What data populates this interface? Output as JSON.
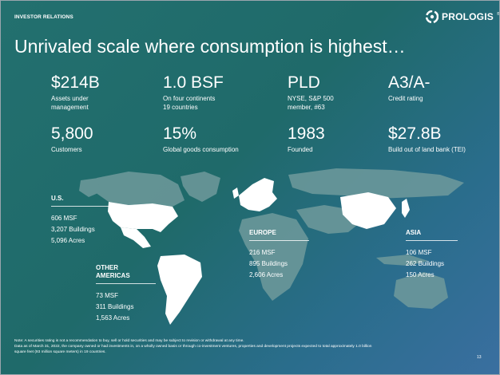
{
  "header": {
    "section_label": "INVESTOR RELATIONS",
    "logo_text": "PROLOGIS",
    "logo_mark": "®"
  },
  "title": "Unrivaled scale where consumption is highest…",
  "stats": [
    {
      "value": "$214B",
      "label": "Assets under\nmanagement"
    },
    {
      "value": "1.0 BSF",
      "label": "On four continents\n19 countries"
    },
    {
      "value": "PLD",
      "label": "NYSE, S&P 500\nmember, #63"
    },
    {
      "value": "A3/A-",
      "label": "Credit rating"
    },
    {
      "value": "5,800",
      "label": "Customers"
    },
    {
      "value": "15%",
      "label": "Global goods consumption"
    },
    {
      "value": "1983",
      "label": "Founded"
    },
    {
      "value": "$27.8B",
      "label": "Build out of land bank (TEI)"
    }
  ],
  "regions": {
    "us": {
      "name": "U.S.",
      "msf": "606 MSF",
      "buildings": "3,207 Buildings",
      "acres": "5,096 Acres"
    },
    "other_americas": {
      "name": "OTHER\nAMERICAS",
      "msf": "73 MSF",
      "buildings": "311 Buildings",
      "acres": "1,563 Acres"
    },
    "europe": {
      "name": "EUROPE",
      "msf": "216 MSF",
      "buildings": "895 Buildings",
      "acres": "2,606 Acres"
    },
    "asia": {
      "name": "ASIA",
      "msf": "106 MSF",
      "buildings": "262 Buildings",
      "acres": "150 Acres"
    }
  },
  "footnote": {
    "line1": "Note: A securities rating is not a recommendation to buy, sell or hold securities and may be subject to revision or withdrawal at any time.",
    "line2": "Data as of March 31, 2022, the company owned or had investments in, on a wholly owned basis or through co-investment ventures, properties and development projects expected to total approximately 1.0 billion",
    "line3": "square feet (93 million square meters) in 19 countries."
  },
  "page_number": "13",
  "colors": {
    "background_start": "#23706f",
    "background_end": "#3a6fa0",
    "text": "#ffffff",
    "map_gray": "#6f9a9c",
    "map_highlight": "#ffffff"
  }
}
